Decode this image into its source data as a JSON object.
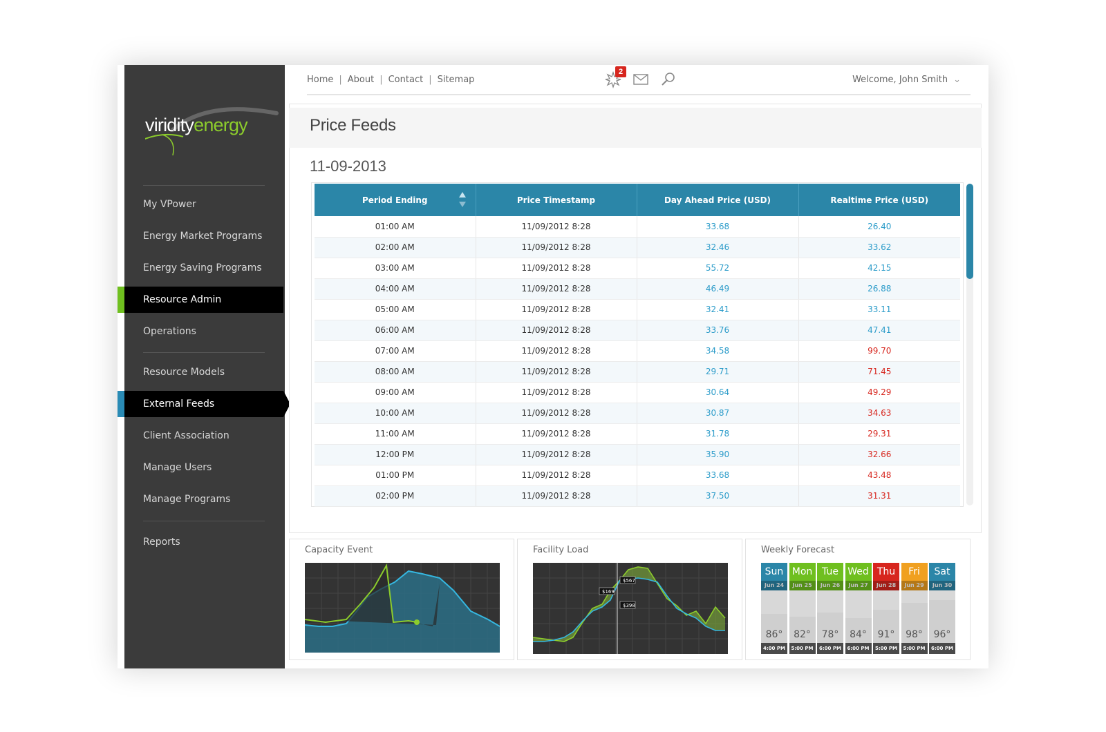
{
  "brand": {
    "word1": "viridity",
    "word2": "energy"
  },
  "sidebar": {
    "items": [
      {
        "label": "My VPower"
      },
      {
        "label": "Energy Market Programs"
      },
      {
        "label": "Energy Saving Programs"
      },
      {
        "label": "Resource Admin"
      },
      {
        "label": "Operations"
      },
      {
        "label": "Resource Models"
      },
      {
        "label": "External Feeds"
      },
      {
        "label": "Client Association"
      },
      {
        "label": "Manage Users"
      },
      {
        "label": "Manage Programs"
      },
      {
        "label": "Reports"
      }
    ]
  },
  "topnav": {
    "links": [
      "Home",
      "About",
      "Contact",
      "Sitemap"
    ],
    "notification_count": "2",
    "welcome": "Welcome, John Smith"
  },
  "icons": [
    "notification-burst-icon",
    "mail-icon",
    "search-icon",
    "chevron-down-icon"
  ],
  "page": {
    "title": "Price Feeds",
    "date": "11-09-2013"
  },
  "table": {
    "headers": [
      "Period Ending",
      "Price Timestamp",
      "Day Ahead Price (USD)",
      "Realtime Price (USD)"
    ],
    "rows": [
      [
        "01:00 AM",
        "11/09/2012 8:28",
        "33.68",
        "26.40"
      ],
      [
        "02:00 AM",
        "11/09/2012 8:28",
        "32.46",
        "33.62"
      ],
      [
        "03:00 AM",
        "11/09/2012 8:28",
        "55.72",
        "42.15"
      ],
      [
        "04:00 AM",
        "11/09/2012 8:28",
        "46.49",
        "26.88"
      ],
      [
        "05:00 AM",
        "11/09/2012 8:28",
        "32.41",
        "33.11"
      ],
      [
        "06:00 AM",
        "11/09/2012 8:28",
        "33.76",
        "47.41"
      ],
      [
        "07:00 AM",
        "11/09/2012 8:28",
        "34.58",
        "99.70"
      ],
      [
        "08:00 AM",
        "11/09/2012 8:28",
        "29.71",
        "71.45"
      ],
      [
        "09:00 AM",
        "11/09/2012 8:28",
        "30.64",
        "49.29"
      ],
      [
        "10:00 AM",
        "11/09/2012 8:28",
        "30.87",
        "34.63"
      ],
      [
        "11:00 AM",
        "11/09/2012 8:28",
        "31.78",
        "29.31"
      ],
      [
        "12:00 PM",
        "11/09/2012 8:28",
        "35.90",
        "32.66"
      ],
      [
        "01:00 PM",
        "11/09/2012 8:28",
        "33.68",
        "43.48"
      ],
      [
        "02:00 PM",
        "11/09/2012 8:28",
        "37.50",
        "31.31"
      ]
    ],
    "realtime_status": [
      "blue",
      "blue",
      "blue",
      "blue",
      "blue",
      "blue",
      "red",
      "red",
      "red",
      "red",
      "red",
      "red",
      "red",
      "red"
    ],
    "colors": {
      "header": "#2b86a8",
      "blue_value": "#2a9bc9",
      "red_value": "#d7261e"
    }
  },
  "widgets": {
    "capacity": {
      "title": "Capacity Event"
    },
    "facility": {
      "title": "Facility Load",
      "callouts": [
        "$169",
        "$567",
        "$398"
      ]
    },
    "forecast": {
      "title": "Weekly Forecast",
      "days": [
        {
          "day": "Sun",
          "date": "Jun 24",
          "temp": "86°",
          "time": "4:00 PM",
          "color": "#2b86a8"
        },
        {
          "day": "Mon",
          "date": "Jun 25",
          "temp": "82°",
          "time": "5:00 PM",
          "color": "#6fbf1f"
        },
        {
          "day": "Tue",
          "date": "Jun 26",
          "temp": "78°",
          "time": "6:00 PM",
          "color": "#6fbf1f"
        },
        {
          "day": "Wed",
          "date": "Jun 27",
          "temp": "84°",
          "time": "6:00 PM",
          "color": "#6fbf1f"
        },
        {
          "day": "Thu",
          "date": "Jun 28",
          "temp": "91°",
          "time": "5:00 PM",
          "color": "#d7261e"
        },
        {
          "day": "Fri",
          "date": "Jun 29",
          "temp": "98°",
          "time": "5:00 PM",
          "color": "#f0a020"
        },
        {
          "day": "Sat",
          "date": "Jun 30",
          "temp": "96°",
          "time": "6:00 PM",
          "color": "#2b86a8"
        }
      ]
    }
  }
}
